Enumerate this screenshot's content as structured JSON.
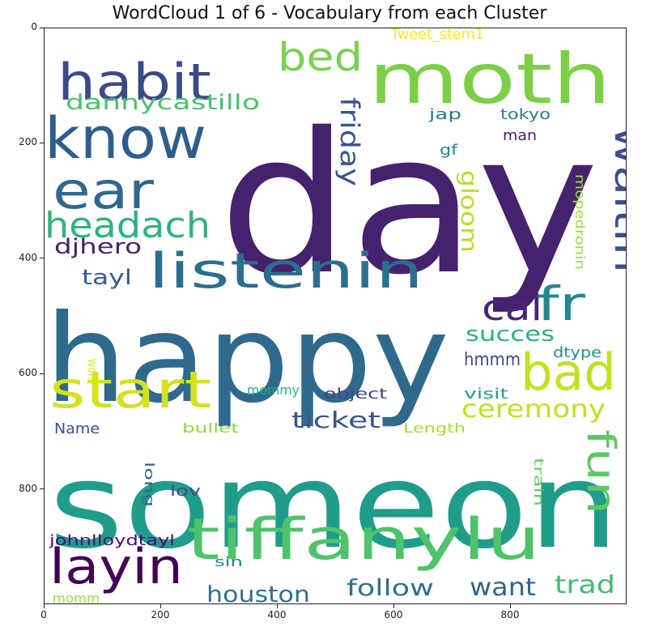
{
  "chart_data": {
    "type": "wordcloud",
    "title": "WordCloud 1 of 6 - Vocabulary from each Cluster",
    "xlim": [
      0,
      1000
    ],
    "ylim": [
      0,
      1000
    ],
    "y_inverted": true,
    "x_ticks": [
      "0",
      "200",
      "400",
      "600",
      "800"
    ],
    "y_ticks": [
      "0",
      "200",
      "400",
      "600",
      "800"
    ],
    "words": [
      {
        "text": "day",
        "color": "#46216d"
      },
      {
        "text": "happy",
        "color": "#2f6a8d"
      },
      {
        "text": "someon",
        "color": "#1f9d8a"
      },
      {
        "text": "moth",
        "color": "#7ccf46"
      },
      {
        "text": "habit",
        "color": "#3b4a86"
      },
      {
        "text": "know",
        "color": "#2f5e8c"
      },
      {
        "text": "ear",
        "color": "#30678d"
      },
      {
        "text": "headach",
        "color": "#2fb47c"
      },
      {
        "text": "listenin",
        "color": "#2b6f8e"
      },
      {
        "text": "bed",
        "color": "#79d151"
      },
      {
        "text": "dannycastillo",
        "color": "#4ac16d"
      },
      {
        "text": "friday",
        "color": "#3a538b"
      },
      {
        "text": "waitin",
        "color": "#3d4e8a"
      },
      {
        "text": "gloom",
        "color": "#b8de29"
      },
      {
        "text": "djhero",
        "color": "#46246c"
      },
      {
        "text": "tayl",
        "color": "#38598c"
      },
      {
        "text": "cal",
        "color": "#482576"
      },
      {
        "text": "fr",
        "color": "#24878e"
      },
      {
        "text": "start",
        "color": "#d3e21b"
      },
      {
        "text": "bad",
        "color": "#c5e021"
      },
      {
        "text": "succes",
        "color": "#2db27d"
      },
      {
        "text": "hmmm",
        "color": "#3f4788"
      },
      {
        "text": "ceremony",
        "color": "#c2df23"
      },
      {
        "text": "ticket",
        "color": "#39568c"
      },
      {
        "text": "fun",
        "color": "#5ec962"
      },
      {
        "text": "layin",
        "color": "#440154"
      },
      {
        "text": "tiffanylu",
        "color": "#4ec36b"
      },
      {
        "text": "houston",
        "color": "#2c728e"
      },
      {
        "text": "follow",
        "color": "#2d708e"
      },
      {
        "text": "want",
        "color": "#33638d"
      },
      {
        "text": "trad",
        "color": "#3dbc74"
      },
      {
        "text": "Tweet_stem1",
        "color": "#fde725"
      },
      {
        "text": "jap",
        "color": "#2a788e"
      },
      {
        "text": "tokyo",
        "color": "#287d8e"
      },
      {
        "text": "man",
        "color": "#481c6e"
      },
      {
        "text": "gf",
        "color": "#26828e"
      },
      {
        "text": "mopedronin",
        "color": "#a0da39"
      },
      {
        "text": "dtype",
        "color": "#21918c"
      },
      {
        "text": "visit",
        "color": "#20a386"
      },
      {
        "text": "object",
        "color": "#414487"
      },
      {
        "text": "mommy",
        "color": "#2ab07f"
      },
      {
        "text": "bullet",
        "color": "#8fd744"
      },
      {
        "text": "Length",
        "color": "#a8db34"
      },
      {
        "text": "Name",
        "color": "#3e4c8a"
      },
      {
        "text": "wom",
        "color": "#e0e33a"
      },
      {
        "text": "long",
        "color": "#31678e"
      },
      {
        "text": "lov",
        "color": "#3e4a89"
      },
      {
        "text": "train",
        "color": "#63cb5f"
      },
      {
        "text": "johnlloydtayl",
        "color": "#440f75"
      },
      {
        "text": "sin",
        "color": "#277f8e"
      },
      {
        "text": "momm",
        "color": "#9dd93b"
      }
    ]
  }
}
